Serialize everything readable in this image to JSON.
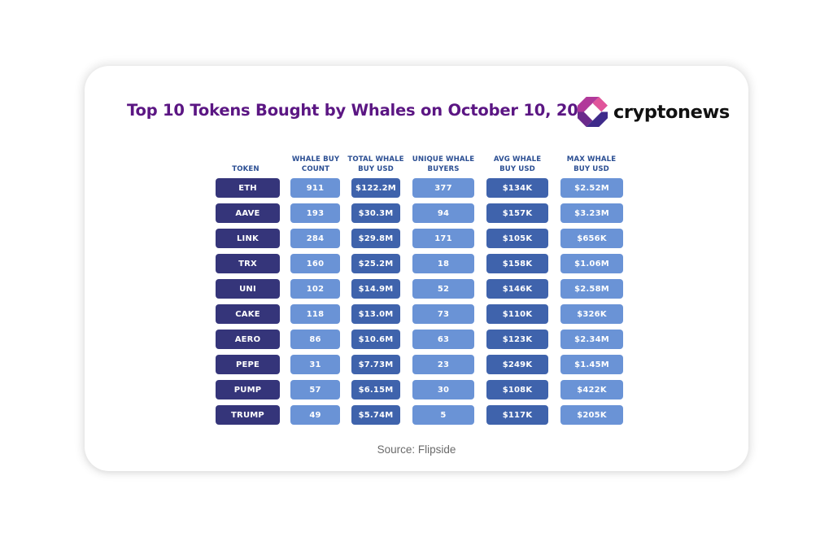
{
  "title": "Top 10 Tokens Bought by Whales on October 10, 2025",
  "logo": {
    "text": "cryptonews",
    "icon": "cryptonews-logo-icon",
    "colors": [
      "#e0559b",
      "#a93a96",
      "#6b2a8c",
      "#3e2a8a"
    ]
  },
  "source": "Source: Flipside",
  "colors": {
    "title": "#5b1683",
    "header_text": "#2c4f93",
    "token_cell": "#35357a",
    "light_cell": "#6a93d6",
    "mid_cell": "#3f63ac",
    "source_text": "#6b6b6b"
  },
  "headers": [
    "TOKEN",
    "WHALE BUY\nCOUNT",
    "TOTAL WHALE\nBUY USD",
    "UNIQUE WHALE\nBUYERS",
    "AVG WHALE\nBUY USD",
    "MAX WHALE\nBUY USD"
  ],
  "rows": [
    [
      "ETH",
      "911",
      "$122.2M",
      "377",
      "$134K",
      "$2.52M"
    ],
    [
      "AAVE",
      "193",
      "$30.3M",
      "94",
      "$157K",
      "$3.23M"
    ],
    [
      "LINK",
      "284",
      "$29.8M",
      "171",
      "$105K",
      "$656K"
    ],
    [
      "TRX",
      "160",
      "$25.2M",
      "18",
      "$158K",
      "$1.06M"
    ],
    [
      "UNI",
      "102",
      "$14.9M",
      "52",
      "$146K",
      "$2.58M"
    ],
    [
      "CAKE",
      "118",
      "$13.0M",
      "73",
      "$110K",
      "$326K"
    ],
    [
      "AERO",
      "86",
      "$10.6M",
      "63",
      "$123K",
      "$2.34M"
    ],
    [
      "PEPE",
      "31",
      "$7.73M",
      "23",
      "$249K",
      "$1.45M"
    ],
    [
      "PUMP",
      "57",
      "$6.15M",
      "30",
      "$108K",
      "$422K"
    ],
    [
      "TRUMP",
      "49",
      "$5.74M",
      "5",
      "$117K",
      "$205K"
    ]
  ],
  "chart_data": {
    "type": "table",
    "title": "Top 10 Tokens Bought by Whales on October 10, 2025",
    "columns": [
      "Token",
      "Whale Buy Count",
      "Total Whale Buy USD",
      "Unique Whale Buyers",
      "Avg Whale Buy USD",
      "Max Whale Buy USD"
    ],
    "categories": [
      "ETH",
      "AAVE",
      "LINK",
      "TRX",
      "UNI",
      "CAKE",
      "AERO",
      "PEPE",
      "PUMP",
      "TRUMP"
    ],
    "series": [
      {
        "name": "Whale Buy Count",
        "values": [
          911,
          193,
          284,
          160,
          102,
          118,
          86,
          31,
          57,
          49
        ]
      },
      {
        "name": "Total Whale Buy USD",
        "values": [
          122200000,
          30300000,
          29800000,
          25200000,
          14900000,
          13000000,
          10600000,
          7730000,
          6150000,
          5740000
        ]
      },
      {
        "name": "Unique Whale Buyers",
        "values": [
          377,
          94,
          171,
          18,
          52,
          73,
          63,
          23,
          30,
          5
        ]
      },
      {
        "name": "Avg Whale Buy USD",
        "values": [
          134000,
          157000,
          105000,
          158000,
          146000,
          110000,
          123000,
          249000,
          108000,
          117000
        ]
      },
      {
        "name": "Max Whale Buy USD",
        "values": [
          2520000,
          3230000,
          656000,
          1060000,
          2580000,
          326000,
          2340000,
          1450000,
          422000,
          205000
        ]
      }
    ],
    "source": "Source: Flipside"
  }
}
